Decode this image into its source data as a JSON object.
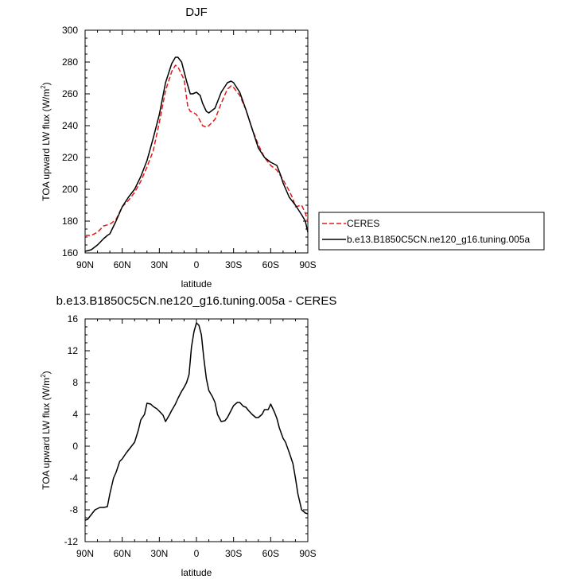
{
  "chart_data": [
    {
      "type": "line",
      "title": "DJF",
      "xlabel": "latitude",
      "ylabel": "TOA upward LW flux (W/m",
      "ylabel_sup": "2",
      "ylabel_close": ")",
      "xlim": [
        90,
        -90
      ],
      "ylim": [
        160,
        300
      ],
      "x_ticks": [
        {
          "value": 90,
          "label": "90N"
        },
        {
          "value": 60,
          "label": "60N"
        },
        {
          "value": 30,
          "label": "30N"
        },
        {
          "value": 0,
          "label": "0"
        },
        {
          "value": -30,
          "label": "30S"
        },
        {
          "value": -60,
          "label": "60S"
        },
        {
          "value": -90,
          "label": "90S"
        }
      ],
      "y_ticks": [
        160,
        180,
        200,
        220,
        240,
        260,
        280,
        300
      ],
      "legend": {
        "placement": "right",
        "entries": [
          {
            "name": "CERES",
            "color": "#e41a1c",
            "dash": "dashed"
          },
          {
            "name": "b.e13.B1850C5CN.ne120_g16.tuning.005a",
            "color": "#000000",
            "dash": "solid"
          }
        ]
      },
      "series": [
        {
          "name": "CERES",
          "color": "#e41a1c",
          "dash": "dashed",
          "x": [
            90,
            85,
            80,
            75,
            70,
            65,
            60,
            55,
            50,
            45,
            40,
            35,
            30,
            25,
            20,
            17,
            15,
            10,
            7,
            5,
            2,
            0,
            -3,
            -5,
            -8,
            -10,
            -15,
            -20,
            -25,
            -28,
            -30,
            -35,
            -40,
            -45,
            -50,
            -55,
            -60,
            -65,
            -70,
            -75,
            -78,
            -80,
            -85,
            -88,
            -90
          ],
          "values": [
            171,
            171,
            173,
            177,
            178,
            181,
            189,
            193,
            198,
            205,
            214,
            224,
            242,
            262,
            274,
            278,
            277,
            269,
            252,
            249,
            248,
            247,
            243,
            240,
            239,
            240,
            244,
            254,
            263,
            265,
            264,
            259,
            250,
            238,
            228,
            220,
            215,
            212,
            206,
            199,
            194,
            189,
            190,
            185,
            180
          ]
        },
        {
          "name": "b.e13.B1850C5CN.ne120_g16.tuning.005a",
          "color": "#000000",
          "dash": "solid",
          "x": [
            90,
            85,
            80,
            75,
            72,
            70,
            65,
            60,
            55,
            50,
            45,
            40,
            35,
            30,
            25,
            20,
            17,
            15,
            12,
            10,
            8,
            5,
            3,
            0,
            -3,
            -5,
            -8,
            -10,
            -15,
            -20,
            -25,
            -28,
            -30,
            -35,
            -40,
            -45,
            -50,
            -55,
            -60,
            -65,
            -68,
            -70,
            -75,
            -80,
            -85,
            -88,
            -90
          ],
          "values": [
            161,
            162,
            165,
            169,
            171,
            172,
            180,
            189,
            195,
            200,
            208,
            218,
            232,
            247,
            267,
            279,
            283,
            283,
            280,
            274,
            268,
            260,
            260,
            261,
            259,
            254,
            249,
            248,
            251,
            261,
            267,
            268,
            267,
            261,
            250,
            238,
            226,
            220,
            217,
            215,
            209,
            204,
            195,
            190,
            184,
            180,
            173
          ]
        }
      ]
    },
    {
      "type": "line",
      "title": "b.e13.B1850C5CN.ne120_g16.tuning.005a - CERES",
      "xlabel": "latitude",
      "ylabel": "TOA upward LW flux (W/m",
      "ylabel_sup": "2",
      "ylabel_close": ")",
      "xlim": [
        90,
        -90
      ],
      "ylim": [
        -12,
        16
      ],
      "x_ticks": [
        {
          "value": 90,
          "label": "90N"
        },
        {
          "value": 60,
          "label": "60N"
        },
        {
          "value": 30,
          "label": "30N"
        },
        {
          "value": 0,
          "label": "0"
        },
        {
          "value": -30,
          "label": "30S"
        },
        {
          "value": -60,
          "label": "60S"
        },
        {
          "value": -90,
          "label": "90S"
        }
      ],
      "y_ticks": [
        -12,
        -8,
        -4,
        0,
        4,
        8,
        12,
        16
      ],
      "series": [
        {
          "name": "",
          "color": "#000000",
          "dash": "solid",
          "x": [
            90,
            88,
            85,
            82,
            78,
            75,
            72,
            70,
            67,
            65,
            62,
            60,
            57,
            55,
            52,
            50,
            47,
            45,
            42,
            40,
            37,
            35,
            32,
            30,
            27,
            25,
            22,
            20,
            17,
            15,
            12,
            10,
            8,
            6,
            4,
            2,
            0,
            -2,
            -4,
            -6,
            -8,
            -10,
            -13,
            -15,
            -17,
            -20,
            -23,
            -25,
            -28,
            -30,
            -33,
            -35,
            -38,
            -40,
            -42,
            -45,
            -48,
            -50,
            -53,
            -55,
            -58,
            -60,
            -63,
            -65,
            -67,
            -70,
            -72,
            -75,
            -78,
            -80,
            -82,
            -85,
            -88,
            -90
          ],
          "values": [
            -9.3,
            -9.2,
            -8.6,
            -8.0,
            -7.7,
            -7.7,
            -7.6,
            -6.0,
            -4.0,
            -3.3,
            -1.9,
            -1.6,
            -0.9,
            -0.5,
            0.1,
            0.5,
            2.0,
            3.3,
            4.0,
            5.4,
            5.3,
            5.0,
            4.7,
            4.4,
            3.9,
            3.1,
            3.9,
            4.5,
            5.3,
            6.0,
            6.9,
            7.4,
            8.0,
            9.0,
            12.5,
            14.4,
            15.5,
            15.2,
            14.0,
            11.0,
            8.5,
            7.0,
            6.2,
            5.5,
            4.0,
            3.1,
            3.2,
            3.6,
            4.5,
            5.1,
            5.5,
            5.5,
            5.0,
            4.9,
            4.5,
            4.0,
            3.6,
            3.6,
            4.0,
            4.6,
            4.6,
            5.3,
            4.3,
            3.5,
            2.3,
            1.0,
            0.5,
            -0.8,
            -2.2,
            -4.0,
            -6.0,
            -8.0,
            -8.4,
            -8.5
          ]
        }
      ]
    }
  ]
}
